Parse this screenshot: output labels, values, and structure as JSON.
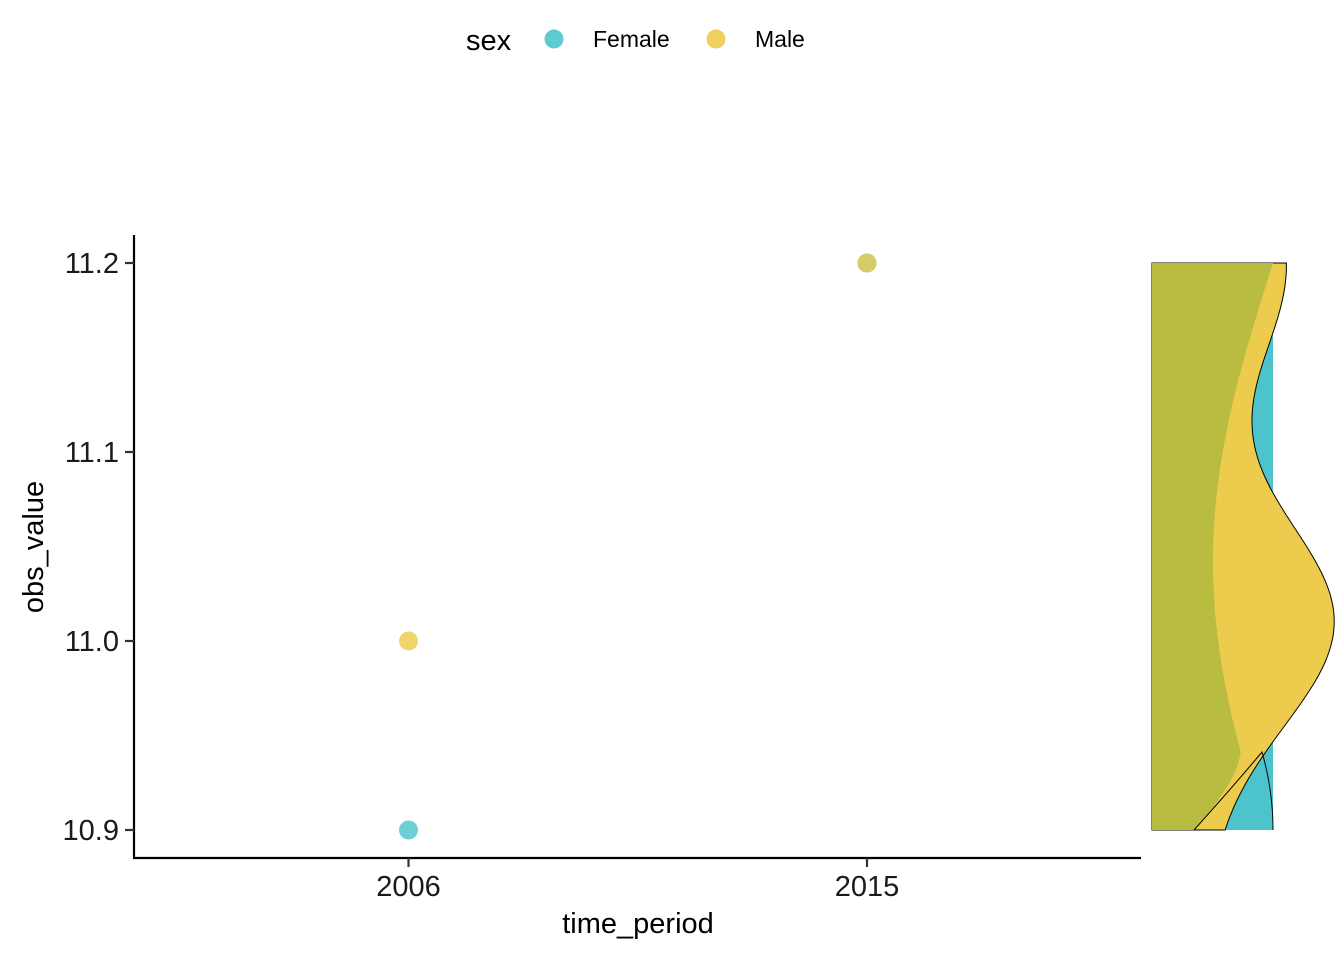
{
  "chart_data": {
    "type": "scatter",
    "xlabel": "time_period",
    "ylabel": "obs_value",
    "categories": [
      "2006",
      "2015"
    ],
    "ylim": [
      10.885,
      11.215
    ],
    "y_ticks": [
      "10.9",
      "11.0",
      "11.1",
      "11.2"
    ],
    "grid": false,
    "legend": {
      "title": "sex",
      "placement": "top"
    },
    "series": [
      {
        "name": "Female",
        "color": "#4DC4CC",
        "points": [
          {
            "x": "2006",
            "y": 10.9
          },
          {
            "x": "2015",
            "y": 11.2
          }
        ]
      },
      {
        "name": "Male",
        "color": "#EDCB4C",
        "points": [
          {
            "x": "2006",
            "y": 11.0
          },
          {
            "x": "2015",
            "y": 11.2
          }
        ]
      }
    ],
    "marginal_density": {
      "side": "right",
      "overlap_color": "#B8BC40"
    }
  }
}
